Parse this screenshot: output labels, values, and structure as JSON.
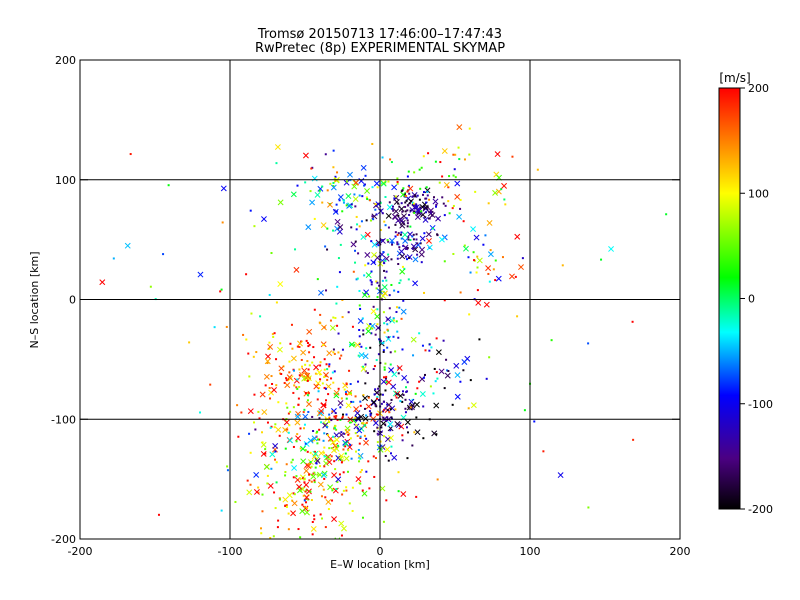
{
  "chart_data": {
    "type": "scatter",
    "title": "Tromsø 20150713 17:46:00–17:47:43",
    "subtitle": "RwPretec (8p) EXPERIMENTAL SKYMAP",
    "xlabel": "E–W location [km]",
    "ylabel": "N–S location [km]",
    "xlim": [
      -200,
      200
    ],
    "ylim": [
      -200,
      200
    ],
    "xticks": [
      -200,
      -100,
      0,
      100,
      200
    ],
    "yticks": [
      -200,
      -100,
      0,
      100,
      200
    ],
    "grid": true,
    "colorbar": {
      "label": "[m/s]",
      "range": [
        -200,
        200
      ],
      "ticks": [
        -200,
        -100,
        0,
        100,
        200
      ],
      "colormap": "black-purple-blue-cyan-green-yellow-red",
      "colors": [
        "#000000",
        "#4b0082",
        "#0000ff",
        "#00ffff",
        "#00ff00",
        "#ffff00",
        "#ff0000"
      ]
    },
    "markers": [
      "dot",
      "x"
    ],
    "series": [
      {
        "clusters": [
          {
            "x": 22,
            "y": 75,
            "sx": 10,
            "sy": 8,
            "n": 110,
            "v": -150,
            "dv": 50
          },
          {
            "x": 15,
            "y": 45,
            "sx": 12,
            "sy": 10,
            "n": 60,
            "v": -120,
            "dv": 60
          },
          {
            "x": -5,
            "y": 60,
            "sx": 25,
            "sy": 30,
            "n": 90,
            "v": -90,
            "dv": 90
          },
          {
            "x": -20,
            "y": 85,
            "sx": 25,
            "sy": 12,
            "n": 70,
            "v": 10,
            "dv": 140
          },
          {
            "x": 45,
            "y": 95,
            "sx": 25,
            "sy": 20,
            "n": 60,
            "v": 110,
            "dv": 110
          },
          {
            "x": 70,
            "y": 25,
            "sx": 8,
            "sy": 12,
            "n": 25,
            "v": 50,
            "dv": 200
          },
          {
            "x": 0,
            "y": 0,
            "sx": 10,
            "sy": 30,
            "n": 70,
            "v": -20,
            "dv": 140
          },
          {
            "x": 0,
            "y": -40,
            "sx": 12,
            "sy": 15,
            "n": 50,
            "v": -60,
            "dv": 140
          },
          {
            "x": -55,
            "y": -60,
            "sx": 18,
            "sy": 22,
            "n": 150,
            "v": 160,
            "dv": 80
          },
          {
            "x": -20,
            "y": -90,
            "sx": 20,
            "sy": 20,
            "n": 120,
            "v": 50,
            "dv": 220
          },
          {
            "x": 5,
            "y": -95,
            "sx": 12,
            "sy": 15,
            "n": 90,
            "v": -170,
            "dv": 70
          },
          {
            "x": -50,
            "y": -150,
            "sx": 25,
            "sy": 30,
            "n": 230,
            "v": 150,
            "dv": 110
          },
          {
            "x": -35,
            "y": -120,
            "sx": 20,
            "sy": 15,
            "n": 90,
            "v": -10,
            "dv": 150
          },
          {
            "x": 40,
            "y": -60,
            "sx": 20,
            "sy": 15,
            "n": 40,
            "v": -120,
            "dv": 140
          },
          {
            "x": 0,
            "y": -20,
            "sx": 80,
            "sy": 90,
            "n": 130,
            "v": 80,
            "dv": 200
          }
        ]
      }
    ]
  }
}
